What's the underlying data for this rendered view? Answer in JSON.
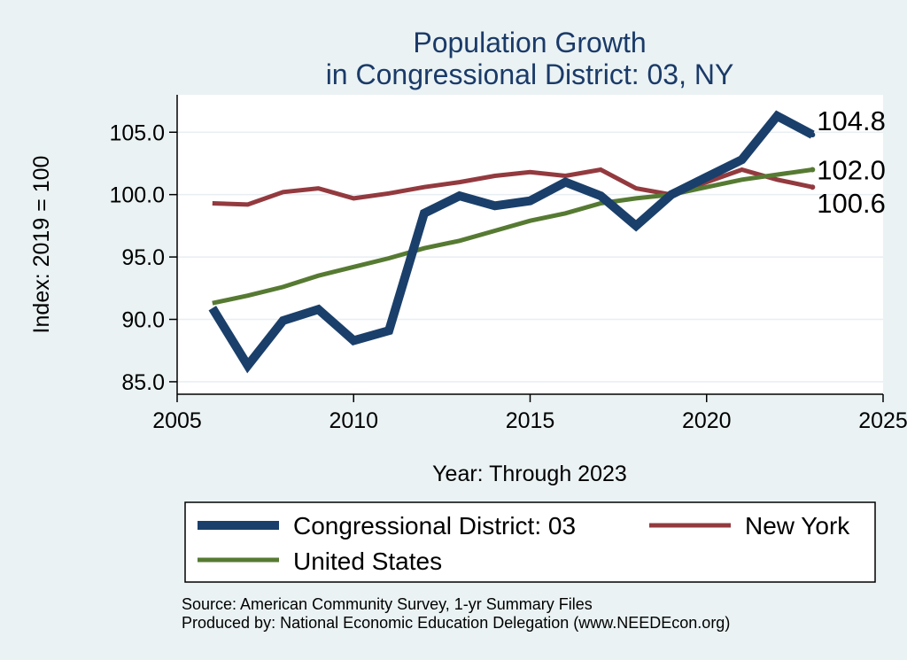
{
  "chart_data": {
    "type": "line",
    "title": [
      "Population Growth",
      "in Congressional District: 03, NY"
    ],
    "xlabel": "Year: Through 2023",
    "ylabel": "Index: 2019 = 100",
    "xlim": [
      2005,
      2025
    ],
    "ylim": [
      84,
      108
    ],
    "xticks": [
      2005,
      2010,
      2015,
      2020,
      2025
    ],
    "yticks": [
      85.0,
      90.0,
      95.0,
      100.0,
      105.0
    ],
    "ytick_labels": [
      "85.0",
      "90.0",
      "95.0",
      "100.0",
      "105.0"
    ],
    "grid": "horizontal",
    "legend_placement": "bottom",
    "series": [
      {
        "name": "Congressional District: 03",
        "color": "#1a3f6a",
        "x": [
          2006,
          2007,
          2008,
          2009,
          2010,
          2011,
          2012,
          2013,
          2014,
          2015,
          2016,
          2017,
          2018,
          2019,
          2020,
          2021,
          2022,
          2023
        ],
        "y": [
          90.9,
          86.3,
          89.9,
          90.8,
          88.3,
          89.1,
          98.5,
          99.9,
          99.1,
          99.5,
          101.0,
          99.9,
          97.5,
          100.0,
          101.4,
          102.8,
          106.3,
          104.8
        ],
        "end_label": "104.8"
      },
      {
        "name": "New York",
        "color": "#933a3f",
        "x": [
          2006,
          2007,
          2008,
          2009,
          2010,
          2011,
          2012,
          2013,
          2014,
          2015,
          2016,
          2017,
          2018,
          2019,
          2020,
          2021,
          2022,
          2023
        ],
        "y": [
          99.3,
          99.2,
          100.2,
          100.5,
          99.7,
          100.1,
          100.6,
          101.0,
          101.5,
          101.8,
          101.5,
          102.0,
          100.5,
          100.0,
          101.0,
          102.0,
          101.2,
          100.6
        ],
        "end_label": "100.6"
      },
      {
        "name": "United States",
        "color": "#567a32",
        "x": [
          2006,
          2007,
          2008,
          2009,
          2010,
          2011,
          2012,
          2013,
          2014,
          2015,
          2016,
          2017,
          2018,
          2019,
          2020,
          2021,
          2022,
          2023
        ],
        "y": [
          91.3,
          91.9,
          92.6,
          93.5,
          94.2,
          94.9,
          95.7,
          96.3,
          97.1,
          97.9,
          98.5,
          99.3,
          99.7,
          100.0,
          100.6,
          101.2,
          101.6,
          102.0
        ],
        "end_label": "102.0"
      }
    ],
    "notes": [
      "Source: American Community Survey, 1-yr Summary Files",
      "Produced by: National Economic Education Delegation (www.NEEDEcon.org)"
    ]
  }
}
